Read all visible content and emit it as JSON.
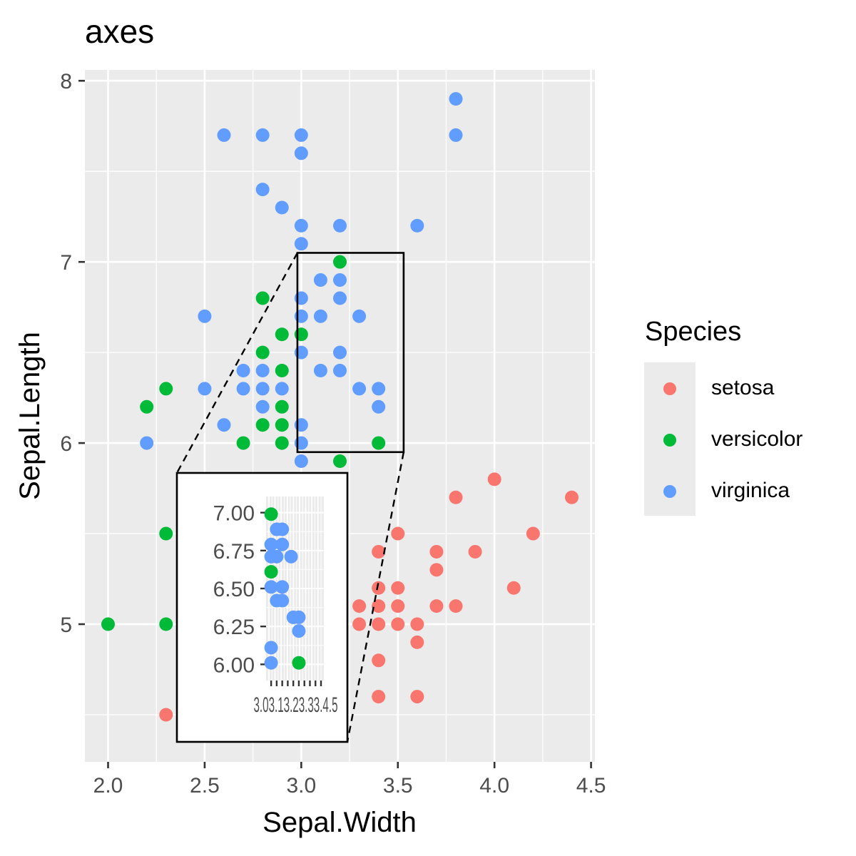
{
  "chart_data": {
    "type": "scatter",
    "title": "axes",
    "xlabel": "Sepal.Width",
    "ylabel": "Sepal.Length",
    "xlim": [
      1.88,
      4.52
    ],
    "ylim": [
      4.24,
      8.06
    ],
    "xticks": [
      "2.0",
      "2.5",
      "3.0",
      "3.5",
      "4.0",
      "4.5"
    ],
    "yticks": [
      "5",
      "6",
      "7",
      "8"
    ],
    "grid": true,
    "legend": {
      "title": "Species",
      "placement": "right"
    },
    "series": [
      {
        "name": "setosa",
        "color": "#F8766D",
        "points": [
          [
            2.3,
            4.5
          ],
          [
            3.3,
            5.0
          ],
          [
            3.4,
            5.0
          ],
          [
            3.5,
            5.0
          ],
          [
            3.6,
            5.0
          ],
          [
            3.6,
            4.9
          ],
          [
            3.4,
            4.8
          ],
          [
            3.4,
            4.6
          ],
          [
            3.6,
            4.6
          ],
          [
            3.3,
            5.1
          ],
          [
            3.4,
            5.1
          ],
          [
            3.5,
            5.1
          ],
          [
            3.7,
            5.1
          ],
          [
            3.8,
            5.1
          ],
          [
            3.4,
            5.2
          ],
          [
            3.5,
            5.2
          ],
          [
            4.1,
            5.2
          ],
          [
            3.7,
            5.3
          ],
          [
            3.4,
            5.4
          ],
          [
            3.7,
            5.4
          ],
          [
            3.9,
            5.4
          ],
          [
            3.5,
            5.5
          ],
          [
            4.2,
            5.5
          ],
          [
            3.8,
            5.7
          ],
          [
            4.4,
            5.7
          ],
          [
            4.0,
            5.8
          ]
        ]
      },
      {
        "name": "versicolor",
        "color": "#00BA38",
        "points": [
          [
            2.0,
            5.0
          ],
          [
            2.3,
            5.0
          ],
          [
            2.3,
            5.5
          ],
          [
            2.6,
            5.8
          ],
          [
            2.7,
            6.0
          ],
          [
            2.9,
            6.0
          ],
          [
            3.4,
            6.0
          ],
          [
            2.8,
            6.1
          ],
          [
            2.9,
            6.1
          ],
          [
            2.2,
            6.2
          ],
          [
            2.9,
            6.2
          ],
          [
            2.3,
            6.3
          ],
          [
            2.9,
            6.4
          ],
          [
            2.8,
            6.5
          ],
          [
            2.9,
            6.6
          ],
          [
            3.0,
            6.6
          ],
          [
            2.8,
            6.8
          ],
          [
            3.2,
            5.9
          ],
          [
            3.2,
            7.0
          ]
        ]
      },
      {
        "name": "virginica",
        "color": "#619CFF",
        "points": [
          [
            2.2,
            6.0
          ],
          [
            2.5,
            6.3
          ],
          [
            2.6,
            6.1
          ],
          [
            2.7,
            5.8
          ],
          [
            2.8,
            5.8
          ],
          [
            2.7,
            6.3
          ],
          [
            2.7,
            6.4
          ],
          [
            2.8,
            6.2
          ],
          [
            2.8,
            6.3
          ],
          [
            2.8,
            6.4
          ],
          [
            2.9,
            6.3
          ],
          [
            3.0,
            5.9
          ],
          [
            3.0,
            6.0
          ],
          [
            3.0,
            6.1
          ],
          [
            3.0,
            6.5
          ],
          [
            3.0,
            6.7
          ],
          [
            3.0,
            6.8
          ],
          [
            3.0,
            7.1
          ],
          [
            3.0,
            7.2
          ],
          [
            3.0,
            7.6
          ],
          [
            3.0,
            7.7
          ],
          [
            3.1,
            6.4
          ],
          [
            3.1,
            6.7
          ],
          [
            3.1,
            6.9
          ],
          [
            3.2,
            6.4
          ],
          [
            3.2,
            6.5
          ],
          [
            3.2,
            6.8
          ],
          [
            3.2,
            6.9
          ],
          [
            3.2,
            7.2
          ],
          [
            3.3,
            6.3
          ],
          [
            3.3,
            6.7
          ],
          [
            3.4,
            6.2
          ],
          [
            3.4,
            6.3
          ],
          [
            2.5,
            6.7
          ],
          [
            2.6,
            7.7
          ],
          [
            2.8,
            7.7
          ],
          [
            2.8,
            7.4
          ],
          [
            2.9,
            7.3
          ],
          [
            3.6,
            7.2
          ],
          [
            3.8,
            7.7
          ],
          [
            3.8,
            7.9
          ]
        ]
      }
    ],
    "zoom_region": {
      "x": [
        2.98,
        3.53
      ],
      "y": [
        5.95,
        7.05
      ]
    },
    "inset": {
      "xlim": [
        2.98,
        3.45
      ],
      "ylim": [
        5.95,
        7.05
      ],
      "yticks": [
        "6.00",
        "6.25",
        "6.50",
        "6.75",
        "7.00"
      ],
      "xtick_values": [
        3.0,
        3.05,
        3.1,
        3.15,
        3.2,
        3.25,
        3.3,
        3.35,
        3.4,
        3.45
      ],
      "xtick_text": "3.03.13.23.33.4.5",
      "points": [
        {
          "x": 3.0,
          "y": 6.99,
          "s": "versicolor"
        },
        {
          "x": 3.05,
          "y": 6.89,
          "s": "virginica"
        },
        {
          "x": 3.1,
          "y": 6.89,
          "s": "virginica"
        },
        {
          "x": 3.0,
          "y": 6.79,
          "s": "virginica"
        },
        {
          "x": 3.1,
          "y": 6.79,
          "s": "virginica"
        },
        {
          "x": 3.0,
          "y": 6.71,
          "s": "virginica"
        },
        {
          "x": 3.05,
          "y": 6.71,
          "s": "virginica"
        },
        {
          "x": 3.18,
          "y": 6.71,
          "s": "virginica"
        },
        {
          "x": 3.0,
          "y": 6.61,
          "s": "versicolor"
        },
        {
          "x": 3.0,
          "y": 6.51,
          "s": "virginica"
        },
        {
          "x": 3.1,
          "y": 6.51,
          "s": "virginica"
        },
        {
          "x": 3.05,
          "y": 6.42,
          "s": "virginica"
        },
        {
          "x": 3.1,
          "y": 6.42,
          "s": "virginica"
        },
        {
          "x": 3.2,
          "y": 6.31,
          "s": "virginica"
        },
        {
          "x": 3.25,
          "y": 6.31,
          "s": "virginica"
        },
        {
          "x": 3.25,
          "y": 6.22,
          "s": "virginica"
        },
        {
          "x": 3.0,
          "y": 6.11,
          "s": "virginica"
        },
        {
          "x": 3.0,
          "y": 6.01,
          "s": "virginica"
        },
        {
          "x": 3.25,
          "y": 6.01,
          "s": "versicolor"
        }
      ]
    }
  }
}
